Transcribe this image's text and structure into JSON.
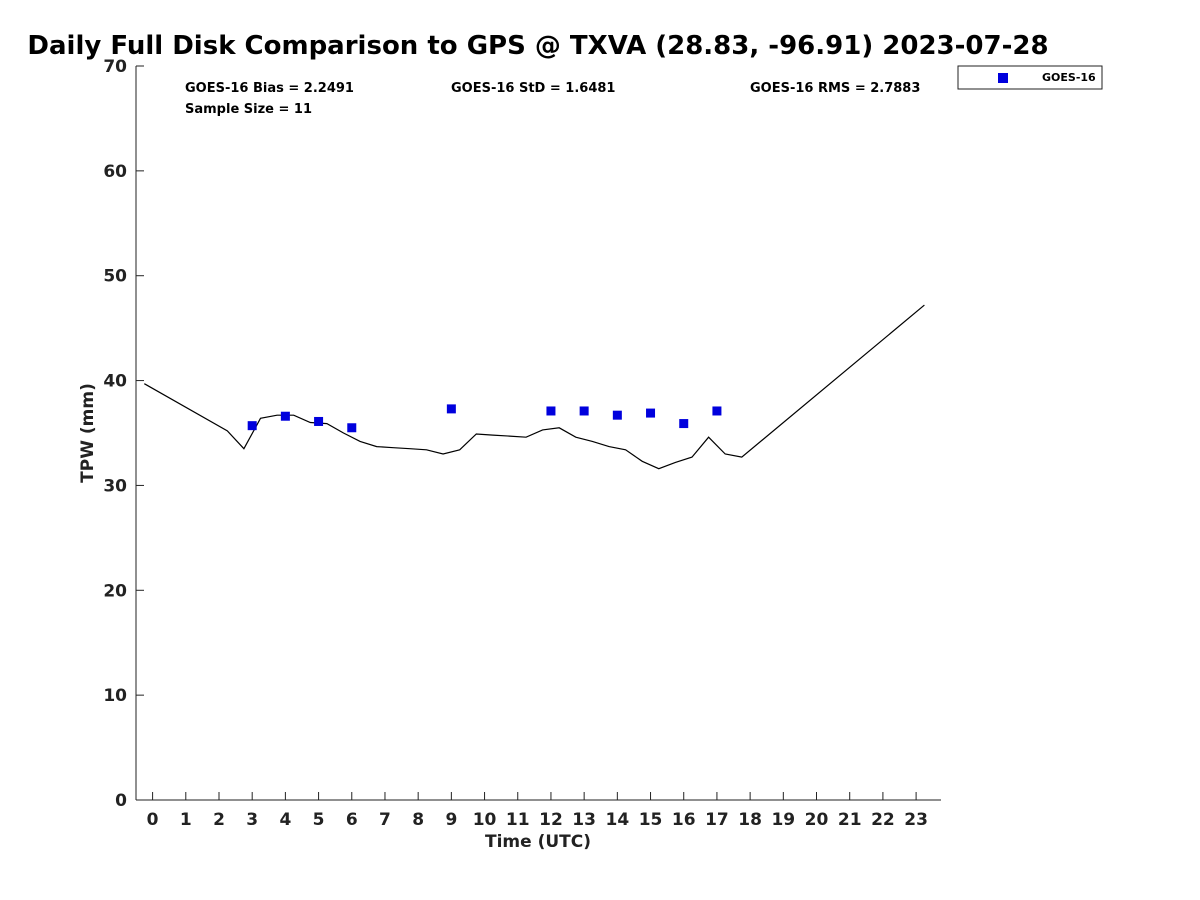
{
  "chart_data": {
    "type": "scatter",
    "title": "Daily Full Disk Comparison to GPS @ TXVA (28.83, -96.91) 2023-07-28",
    "xlabel": "Time (UTC)",
    "ylabel": "TPW (mm)",
    "xlim": [
      -0.5,
      23.75
    ],
    "ylim": [
      0,
      70
    ],
    "xticks": [
      0,
      1,
      2,
      3,
      4,
      5,
      6,
      7,
      8,
      9,
      10,
      11,
      12,
      13,
      14,
      15,
      16,
      17,
      18,
      19,
      20,
      21,
      22,
      23
    ],
    "yticks": [
      0,
      10,
      20,
      30,
      40,
      50,
      60,
      70
    ],
    "grid": false,
    "legend_position": "top-right",
    "stats": {
      "bias": "GOES-16 Bias = 2.2491",
      "std": "GOES-16 StD = 1.6481",
      "rms": "GOES-16 RMS = 2.7883",
      "sample": "Sample Size = 11"
    },
    "series": [
      {
        "name": "GOES-16",
        "kind": "scatter",
        "marker": "square",
        "color": "#0000dd",
        "x": [
          3.0,
          4.0,
          5.0,
          6.0,
          9.0,
          12.0,
          13.0,
          14.0,
          15.0,
          16.0,
          17.0
        ],
        "y": [
          35.7,
          36.6,
          36.1,
          35.5,
          37.3,
          37.1,
          37.1,
          36.7,
          36.9,
          35.9,
          37.1
        ]
      },
      {
        "kind": "line",
        "color": "#000000",
        "x": [
          -0.25,
          2.25,
          2.75,
          3.25,
          3.75,
          4.25,
          4.75,
          5.25,
          5.75,
          6.25,
          6.75,
          7.25,
          7.75,
          8.25,
          8.75,
          9.25,
          9.75,
          10.25,
          10.75,
          11.25,
          11.75,
          12.25,
          12.75,
          13.25,
          13.75,
          14.25,
          14.75,
          15.25,
          15.75,
          16.25,
          16.75,
          17.25,
          17.75,
          23.25
        ],
        "y": [
          39.7,
          35.2,
          33.5,
          36.4,
          36.7,
          36.7,
          36.0,
          35.9,
          35.0,
          34.2,
          33.7,
          33.6,
          33.5,
          33.4,
          33.0,
          33.4,
          34.9,
          34.8,
          34.7,
          34.6,
          35.3,
          35.5,
          34.6,
          34.2,
          33.7,
          33.4,
          32.3,
          31.6,
          32.2,
          32.7,
          34.6,
          33.0,
          32.7,
          47.2
        ]
      }
    ]
  }
}
